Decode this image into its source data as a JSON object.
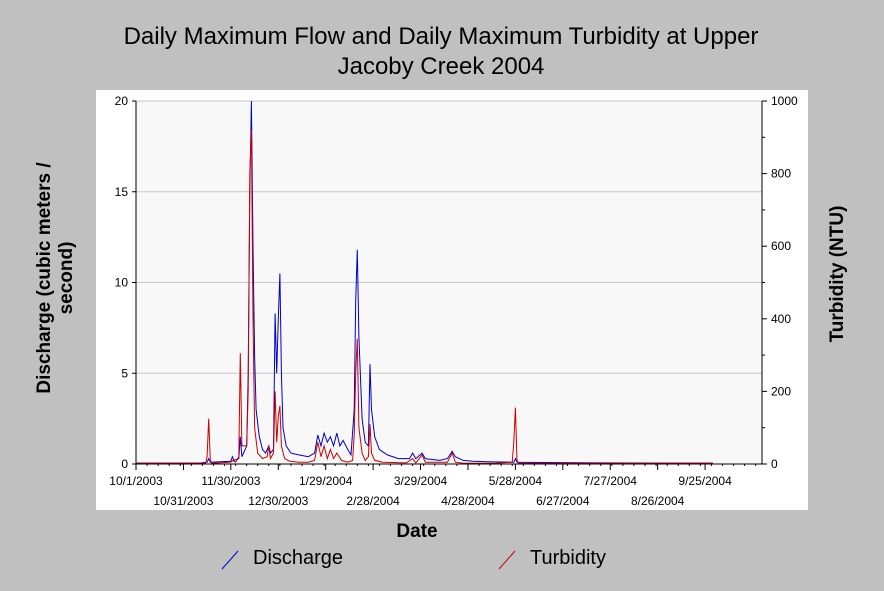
{
  "chart_data": {
    "type": "line",
    "title_line1": "Daily Maximum Flow and Daily Maximum Turbidity at Upper",
    "title_line2": "Jacoby Creek 2004",
    "xlabel": "Date",
    "ylabel_left_line1": "Discharge (cubic meters /",
    "ylabel_left_line2": "second)",
    "ylabel_right": "Turbidity (NTU)",
    "x_ticks_upper": [
      "10/1/2003",
      "11/30/2003",
      "1/29/2004",
      "3/29/2004",
      "5/28/2004",
      "7/27/2004",
      "9/25/2004"
    ],
    "x_ticks_lower": [
      "10/31/2003",
      "12/30/2003",
      "2/28/2004",
      "4/28/2004",
      "6/27/2004",
      "8/26/2004"
    ],
    "xlim": [
      "2003-10-01",
      "2004-10-31"
    ],
    "y_left": {
      "ticks": [
        "0",
        "5",
        "10",
        "15",
        "20"
      ],
      "ylim": [
        0,
        20
      ]
    },
    "y_right": {
      "ticks": [
        "0",
        "200",
        "400",
        "600",
        "800",
        "1000"
      ],
      "ylim": [
        0,
        1000
      ]
    },
    "grid": true,
    "legend": [
      {
        "name": "Discharge",
        "color": "#0000cc"
      },
      {
        "name": "Turbidity",
        "color": "#cc0000"
      }
    ],
    "series": [
      {
        "name": "Discharge",
        "axis": "left",
        "color": "#0000cc",
        "points": [
          [
            "2003-10-01",
            0.05
          ],
          [
            "2003-11-10",
            0.05
          ],
          [
            "2003-11-15",
            0.1
          ],
          [
            "2003-11-16",
            0.3
          ],
          [
            "2003-11-17",
            0.1
          ],
          [
            "2003-11-30",
            0.15
          ],
          [
            "2003-12-01",
            0.4
          ],
          [
            "2003-12-02",
            0.2
          ],
          [
            "2003-12-05",
            0.3
          ],
          [
            "2003-12-06",
            1.5
          ],
          [
            "2003-12-07",
            0.4
          ],
          [
            "2003-12-10",
            1.0
          ],
          [
            "2003-12-11",
            5.0
          ],
          [
            "2003-12-12",
            15.0
          ],
          [
            "2003-12-13",
            20.0
          ],
          [
            "2003-12-14",
            12.0
          ],
          [
            "2003-12-15",
            6.0
          ],
          [
            "2003-12-16",
            3.0
          ],
          [
            "2003-12-18",
            1.5
          ],
          [
            "2003-12-20",
            0.8
          ],
          [
            "2003-12-22",
            0.6
          ],
          [
            "2003-12-24",
            1.0
          ],
          [
            "2003-12-25",
            0.6
          ],
          [
            "2003-12-27",
            0.8
          ],
          [
            "2003-12-28",
            8.3
          ],
          [
            "2003-12-29",
            5.0
          ],
          [
            "2003-12-30",
            8.0
          ],
          [
            "2003-12-31",
            10.5
          ],
          [
            "2004-01-01",
            5.0
          ],
          [
            "2004-01-02",
            2.0
          ],
          [
            "2004-01-04",
            1.0
          ],
          [
            "2004-01-07",
            0.6
          ],
          [
            "2004-01-12",
            0.5
          ],
          [
            "2004-01-18",
            0.4
          ],
          [
            "2004-01-22",
            0.6
          ],
          [
            "2004-01-24",
            1.6
          ],
          [
            "2004-01-26",
            1.0
          ],
          [
            "2004-01-28",
            1.7
          ],
          [
            "2004-01-30",
            1.2
          ],
          [
            "2004-02-01",
            1.5
          ],
          [
            "2004-02-03",
            1.0
          ],
          [
            "2004-02-05",
            1.7
          ],
          [
            "2004-02-07",
            1.0
          ],
          [
            "2004-02-09",
            1.3
          ],
          [
            "2004-02-12",
            0.8
          ],
          [
            "2004-02-14",
            0.5
          ],
          [
            "2004-02-16",
            3.0
          ],
          [
            "2004-02-17",
            9.0
          ],
          [
            "2004-02-18",
            11.8
          ],
          [
            "2004-02-19",
            7.0
          ],
          [
            "2004-02-21",
            2.5
          ],
          [
            "2004-02-23",
            1.2
          ],
          [
            "2004-02-25",
            1.0
          ],
          [
            "2004-02-26",
            5.5
          ],
          [
            "2004-02-27",
            3.0
          ],
          [
            "2004-02-29",
            1.5
          ],
          [
            "2004-03-03",
            0.8
          ],
          [
            "2004-03-08",
            0.5
          ],
          [
            "2004-03-15",
            0.3
          ],
          [
            "2004-03-22",
            0.3
          ],
          [
            "2004-03-24",
            0.6
          ],
          [
            "2004-03-26",
            0.3
          ],
          [
            "2004-03-30",
            0.6
          ],
          [
            "2004-04-01",
            0.3
          ],
          [
            "2004-04-10",
            0.2
          ],
          [
            "2004-04-15",
            0.3
          ],
          [
            "2004-04-18",
            0.7
          ],
          [
            "2004-04-20",
            0.4
          ],
          [
            "2004-04-25",
            0.2
          ],
          [
            "2004-05-01",
            0.15
          ],
          [
            "2004-05-10",
            0.12
          ],
          [
            "2004-05-27",
            0.1
          ],
          [
            "2004-05-28",
            0.3
          ],
          [
            "2004-05-29",
            0.1
          ],
          [
            "2004-06-15",
            0.08
          ],
          [
            "2004-07-20",
            0.06
          ],
          [
            "2004-08-30",
            0.05
          ],
          [
            "2004-09-30",
            0.05
          ]
        ]
      },
      {
        "name": "Turbidity",
        "axis": "right",
        "color": "#cc0000",
        "points": [
          [
            "2003-10-01",
            2
          ],
          [
            "2003-11-14",
            2
          ],
          [
            "2003-11-15",
            20
          ],
          [
            "2003-11-16",
            125
          ],
          [
            "2003-11-17",
            10
          ],
          [
            "2003-11-18",
            2
          ],
          [
            "2003-11-30",
            5
          ],
          [
            "2003-12-01",
            10
          ],
          [
            "2003-12-03",
            5
          ],
          [
            "2003-12-05",
            20
          ],
          [
            "2003-12-06",
            305
          ],
          [
            "2003-12-07",
            50
          ],
          [
            "2003-12-10",
            50
          ],
          [
            "2003-12-11",
            200
          ],
          [
            "2003-12-12",
            800
          ],
          [
            "2003-12-13",
            920
          ],
          [
            "2003-12-14",
            400
          ],
          [
            "2003-12-15",
            100
          ],
          [
            "2003-12-17",
            30
          ],
          [
            "2003-12-20",
            15
          ],
          [
            "2003-12-23",
            20
          ],
          [
            "2003-12-24",
            50
          ],
          [
            "2003-12-25",
            15
          ],
          [
            "2003-12-27",
            30
          ],
          [
            "2003-12-28",
            200
          ],
          [
            "2003-12-29",
            60
          ],
          [
            "2003-12-30",
            130
          ],
          [
            "2003-12-31",
            160
          ],
          [
            "2004-01-01",
            50
          ],
          [
            "2004-01-03",
            15
          ],
          [
            "2004-01-06",
            8
          ],
          [
            "2004-01-12",
            5
          ],
          [
            "2004-01-18",
            5
          ],
          [
            "2004-01-22",
            10
          ],
          [
            "2004-01-24",
            60
          ],
          [
            "2004-01-26",
            20
          ],
          [
            "2004-01-28",
            50
          ],
          [
            "2004-01-30",
            15
          ],
          [
            "2004-02-01",
            40
          ],
          [
            "2004-02-03",
            15
          ],
          [
            "2004-02-05",
            30
          ],
          [
            "2004-02-08",
            10
          ],
          [
            "2004-02-12",
            5
          ],
          [
            "2004-02-15",
            10
          ],
          [
            "2004-02-16",
            80
          ],
          [
            "2004-02-17",
            250
          ],
          [
            "2004-02-18",
            345
          ],
          [
            "2004-02-19",
            100
          ],
          [
            "2004-02-21",
            30
          ],
          [
            "2004-02-23",
            10
          ],
          [
            "2004-02-25",
            20
          ],
          [
            "2004-02-26",
            110
          ],
          [
            "2004-02-27",
            30
          ],
          [
            "2004-02-29",
            10
          ],
          [
            "2004-03-05",
            5
          ],
          [
            "2004-03-20",
            3
          ],
          [
            "2004-03-24",
            15
          ],
          [
            "2004-03-26",
            3
          ],
          [
            "2004-03-30",
            25
          ],
          [
            "2004-04-01",
            5
          ],
          [
            "2004-04-15",
            5
          ],
          [
            "2004-04-18",
            30
          ],
          [
            "2004-04-20",
            5
          ],
          [
            "2004-04-25",
            2
          ],
          [
            "2004-05-15",
            2
          ],
          [
            "2004-05-26",
            5
          ],
          [
            "2004-05-27",
            60
          ],
          [
            "2004-05-28",
            155
          ],
          [
            "2004-05-29",
            10
          ],
          [
            "2004-05-30",
            2
          ],
          [
            "2004-06-30",
            2
          ],
          [
            "2004-08-30",
            2
          ],
          [
            "2004-09-30",
            2
          ]
        ]
      }
    ]
  }
}
